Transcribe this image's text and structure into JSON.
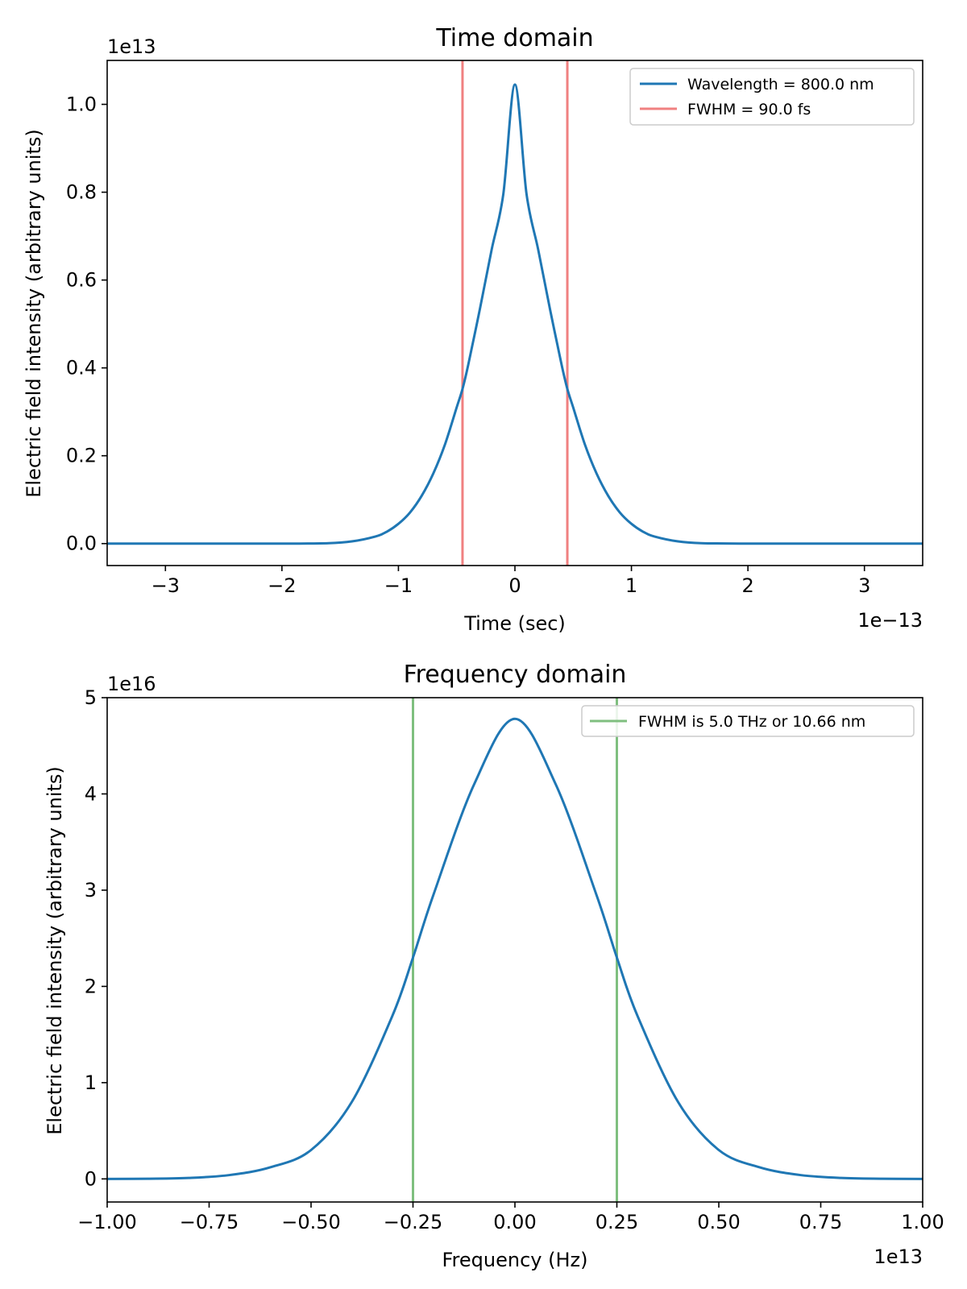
{
  "chart_data": [
    {
      "type": "line",
      "title": "Time domain",
      "xlabel": "Time (sec)",
      "ylabel": "Electric field intensity (arbitrary units)",
      "x_offset_label": "1e−13",
      "y_offset_label": "1e13",
      "xlim": [
        -3.5,
        3.5
      ],
      "ylim": [
        -0.05,
        1.1
      ],
      "xticks": [
        {
          "value": -3,
          "label": "−3"
        },
        {
          "value": -2,
          "label": "−2"
        },
        {
          "value": -1,
          "label": "−1"
        },
        {
          "value": 0,
          "label": "0"
        },
        {
          "value": 1,
          "label": "1"
        },
        {
          "value": 2,
          "label": "2"
        },
        {
          "value": 3,
          "label": "3"
        }
      ],
      "yticks": [
        {
          "value": 0.0,
          "label": "0.0"
        },
        {
          "value": 0.2,
          "label": "0.2"
        },
        {
          "value": 0.4,
          "label": "0.4"
        },
        {
          "value": 0.6,
          "label": "0.6"
        },
        {
          "value": 0.8,
          "label": "0.8"
        },
        {
          "value": 1.0,
          "label": "1.0"
        }
      ],
      "series": [
        {
          "name": "Wavelength = 800.0 nm",
          "color": "#1f77b4",
          "x": [
            -3.5,
            -3.0,
            -2.5,
            -2.0,
            -1.6,
            -1.4,
            -1.2,
            -1.1,
            -1.0,
            -0.9,
            -0.8,
            -0.7,
            -0.6,
            -0.5,
            -0.45,
            -0.4,
            -0.3,
            -0.2,
            -0.1,
            0.0,
            0.1,
            0.2,
            0.3,
            0.4,
            0.45,
            0.5,
            0.6,
            0.7,
            0.8,
            0.9,
            1.0,
            1.1,
            1.2,
            1.4,
            1.6,
            2.0,
            2.5,
            3.0,
            3.5
          ],
          "y": [
            0.0,
            0.0,
            0.0,
            0.0,
            0.001,
            0.005,
            0.016,
            0.027,
            0.045,
            0.071,
            0.109,
            0.16,
            0.226,
            0.31,
            0.352,
            0.408,
            0.535,
            0.669,
            0.795,
            1.045,
            0.795,
            0.669,
            0.535,
            0.408,
            0.352,
            0.31,
            0.226,
            0.16,
            0.109,
            0.071,
            0.045,
            0.027,
            0.016,
            0.005,
            0.001,
            0.0,
            0.0,
            0.0,
            0.0
          ]
        }
      ],
      "vlines": {
        "name": "FWHM = 90.0 fs",
        "color": "#f08080",
        "x": [
          -0.45,
          0.45
        ]
      },
      "legend_position": "top-right"
    },
    {
      "type": "line",
      "title": "Frequency domain",
      "xlabel": "Frequency (Hz)",
      "ylabel": "Electric field intensity (arbitrary units)",
      "x_offset_label": "1e13",
      "y_offset_label": "1e16",
      "xlim": [
        -1.0,
        1.0
      ],
      "ylim": [
        -0.24,
        5.0
      ],
      "xticks": [
        {
          "value": -1.0,
          "label": "−1.00"
        },
        {
          "value": -0.75,
          "label": "−0.75"
        },
        {
          "value": -0.5,
          "label": "−0.50"
        },
        {
          "value": -0.25,
          "label": "−0.25"
        },
        {
          "value": 0.0,
          "label": "0.00"
        },
        {
          "value": 0.25,
          "label": "0.25"
        },
        {
          "value": 0.5,
          "label": "0.50"
        },
        {
          "value": 0.75,
          "label": "0.75"
        },
        {
          "value": 1.0,
          "label": "1.00"
        }
      ],
      "yticks": [
        {
          "value": 0,
          "label": "0"
        },
        {
          "value": 1,
          "label": "1"
        },
        {
          "value": 2,
          "label": "2"
        },
        {
          "value": 3,
          "label": "3"
        },
        {
          "value": 4,
          "label": "4"
        },
        {
          "value": 5,
          "label": "5"
        }
      ],
      "series": [
        {
          "name": "",
          "color": "#1f77b4",
          "x": [
            -1.0,
            -0.9,
            -0.8,
            -0.7,
            -0.6,
            -0.5,
            -0.4,
            -0.3,
            -0.25,
            -0.2,
            -0.1,
            0.0,
            0.1,
            0.2,
            0.25,
            0.3,
            0.4,
            0.5,
            0.6,
            0.7,
            0.8,
            0.9,
            1.0
          ],
          "y": [
            0.0,
            0.002,
            0.01,
            0.04,
            0.12,
            0.3,
            0.8,
            1.7,
            2.3,
            2.95,
            4.1,
            4.78,
            4.1,
            2.95,
            2.3,
            1.7,
            0.8,
            0.3,
            0.12,
            0.04,
            0.01,
            0.002,
            0.0
          ]
        }
      ],
      "vlines": {
        "name": "FWHM is 5.0 THz or 10.66 nm",
        "color": "#7fbf7f",
        "x": [
          -0.25,
          0.25
        ]
      },
      "legend_position": "top-right"
    }
  ]
}
